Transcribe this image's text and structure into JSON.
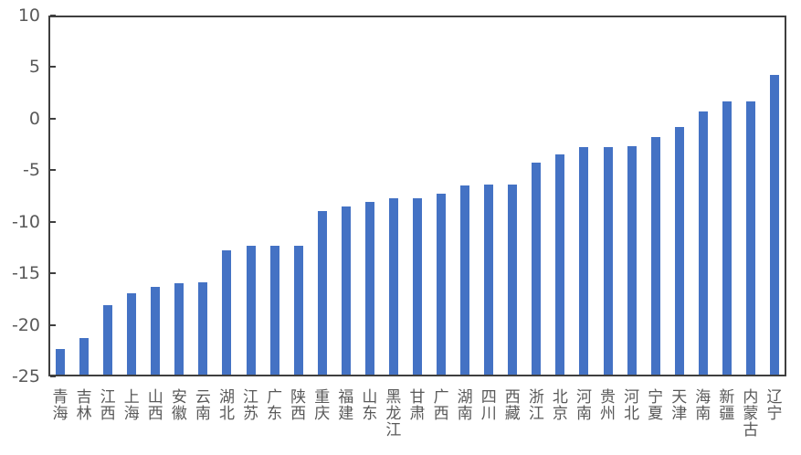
{
  "chart_data": {
    "type": "bar",
    "title": "",
    "xlabel": "",
    "ylabel": "",
    "categories": [
      "青海",
      "吉林",
      "江西",
      "上海",
      "山西",
      "安徽",
      "云南",
      "湖北",
      "江苏",
      "广东",
      "陕西",
      "重庆",
      "福建",
      "山东",
      "黑龙江",
      "甘肃",
      "广西",
      "湖南",
      "四川",
      "西藏",
      "浙江",
      "北京",
      "河南",
      "贵州",
      "河北",
      "宁夏",
      "天津",
      "海南",
      "新疆",
      "内蒙古",
      "辽宁"
    ],
    "values": [
      -22.3,
      -21.3,
      -18.1,
      -16.9,
      -16.3,
      -16.0,
      -15.9,
      -12.8,
      -12.3,
      -12.3,
      -12.3,
      -9.0,
      -8.5,
      -8.1,
      -7.7,
      -7.7,
      -7.3,
      -6.5,
      -6.4,
      -6.4,
      -4.3,
      -3.5,
      -2.8,
      -2.8,
      -2.7,
      -1.8,
      -0.8,
      0.7,
      1.7,
      1.7,
      4.2
    ],
    "ylim": [
      -25,
      10
    ],
    "yticks": [
      10,
      5,
      0,
      -5,
      -10,
      -15,
      -20,
      -25
    ],
    "bar_base": -25,
    "grid": false,
    "legend": false,
    "colors": {
      "bar": "#4472C4",
      "axis": "#3f3f3f",
      "tick_label": "#595959",
      "background": "#ffffff"
    }
  }
}
